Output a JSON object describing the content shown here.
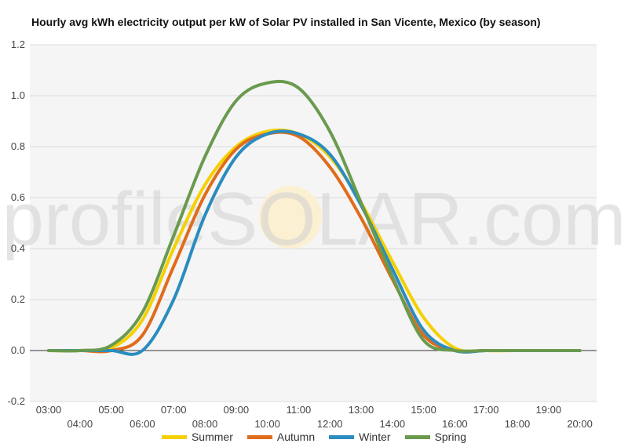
{
  "chart_data": {
    "type": "line",
    "title": "Hourly avg kWh electricity output per kW of Solar PV installed in San Vicente, Mexico (by season)",
    "xlabel": "",
    "ylabel": "",
    "x": [
      "03:00",
      "04:00",
      "05:00",
      "06:00",
      "07:00",
      "08:00",
      "09:00",
      "10:00",
      "11:00",
      "12:00",
      "13:00",
      "14:00",
      "15:00",
      "16:00",
      "17:00",
      "18:00",
      "19:00",
      "20:00"
    ],
    "ylim": [
      -0.2,
      1.2
    ],
    "yticks": [
      "-0.2",
      "0.0",
      "0.2",
      "0.4",
      "0.6",
      "0.8",
      "1.0",
      "1.2"
    ],
    "grid": true,
    "legend_position": "bottom",
    "series": [
      {
        "name": "Summer",
        "color": "#f5d000",
        "values": [
          0,
          0,
          0.01,
          0.12,
          0.4,
          0.65,
          0.8,
          0.86,
          0.85,
          0.76,
          0.58,
          0.35,
          0.13,
          0.01,
          0,
          0,
          0,
          0
        ]
      },
      {
        "name": "Autumn",
        "color": "#e06c1b",
        "values": [
          0,
          0,
          0.0,
          0.06,
          0.33,
          0.61,
          0.79,
          0.85,
          0.84,
          0.72,
          0.52,
          0.28,
          0.06,
          0.0,
          0,
          0,
          0,
          0
        ]
      },
      {
        "name": "Winter",
        "color": "#2a8cbf",
        "values": [
          0,
          0,
          0.0,
          0.0,
          0.2,
          0.53,
          0.76,
          0.85,
          0.85,
          0.77,
          0.57,
          0.32,
          0.08,
          0.0,
          0,
          0,
          0,
          0
        ]
      },
      {
        "name": "Spring",
        "color": "#6a9a4e",
        "values": [
          0,
          0,
          0.02,
          0.15,
          0.45,
          0.76,
          0.98,
          1.05,
          1.03,
          0.86,
          0.58,
          0.29,
          0.04,
          0.0,
          0,
          0,
          0,
          0
        ]
      }
    ],
    "watermark": "profileSOLAR.com"
  }
}
